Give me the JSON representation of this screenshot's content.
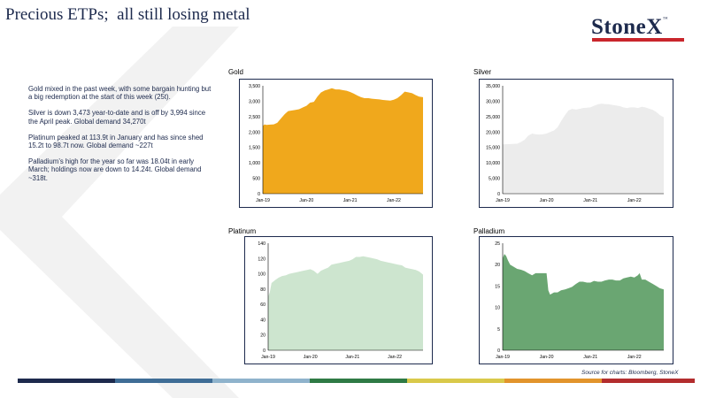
{
  "title": "Precious ETPs;  all still losing metal",
  "logo": {
    "text": "StoneX",
    "tm": "™"
  },
  "commentary": [
    "Gold mixed in the past week, with some bargain hunting but a big redemption at the start of this week (25t).",
    "Silver is down 3,473 year-to-date and is off by 3,994 since the April peak.  Global demand 34,270t",
    "Platinum peaked at 113.9t in January and has since shed 15.2t to 98.7t now.  Global demand ~227t",
    "Palladium’s  high for the year so far was 18.04t in early March; holdings now are down to 14.24t.  Global demand ~318t."
  ],
  "source": "Source for charts: Bloomberg, StoneX",
  "colors": {
    "navy": "#1d2a4d",
    "gold": "#f0a81c",
    "silver": "#ececec",
    "platinum": "#cde5cf",
    "palladium": "#6aa672",
    "logo_red": "#c9262c"
  },
  "chart_data": [
    {
      "type": "area",
      "title": "Gold",
      "color": "#f0a81c",
      "ylim": [
        0,
        3500
      ],
      "yticks": [
        "0",
        "500",
        "1,000",
        "1,500",
        "2,000",
        "2,500",
        "3,000",
        "3,500"
      ],
      "ytick_values": [
        0,
        500,
        1000,
        1500,
        2000,
        2500,
        3000,
        3500
      ],
      "xticks": [
        "Jan-19",
        "Jan-20",
        "Jan-21",
        "Jan-22"
      ],
      "xtick_values": [
        2019.0,
        2020.0,
        2021.0,
        2022.0
      ],
      "xlim": [
        2019.0,
        2022.67
      ],
      "x": [
        2019.0,
        2019.04,
        2019.08,
        2019.17,
        2019.25,
        2019.33,
        2019.42,
        2019.5,
        2019.58,
        2019.67,
        2019.75,
        2019.83,
        2019.92,
        2020.0,
        2020.08,
        2020.17,
        2020.25,
        2020.33,
        2020.42,
        2020.5,
        2020.58,
        2020.67,
        2020.75,
        2020.83,
        2020.92,
        2021.0,
        2021.08,
        2021.17,
        2021.25,
        2021.33,
        2021.42,
        2021.5,
        2021.58,
        2021.67,
        2021.75,
        2021.83,
        2021.92,
        2022.0,
        2022.08,
        2022.17,
        2022.25,
        2022.33,
        2022.42,
        2022.5,
        2022.58,
        2022.67
      ],
      "y": [
        2200,
        2250,
        2230,
        2240,
        2250,
        2300,
        2450,
        2580,
        2680,
        2700,
        2720,
        2740,
        2800,
        2850,
        2950,
        2980,
        3150,
        3280,
        3350,
        3380,
        3420,
        3380,
        3380,
        3360,
        3340,
        3300,
        3250,
        3180,
        3130,
        3100,
        3100,
        3080,
        3070,
        3060,
        3040,
        3030,
        3020,
        3050,
        3100,
        3200,
        3310,
        3290,
        3260,
        3200,
        3150,
        3130
      ]
    },
    {
      "type": "area",
      "title": "Silver",
      "color": "#ececec",
      "ylim": [
        0,
        35000
      ],
      "yticks": [
        "0",
        "5,000",
        "10,000",
        "15,000",
        "20,000",
        "25,000",
        "30,000",
        "35,000"
      ],
      "ytick_values": [
        0,
        5000,
        10000,
        15000,
        20000,
        25000,
        30000,
        35000
      ],
      "xticks": [
        "Jan-19",
        "Jan-20",
        "Jan-21",
        "Jan-22"
      ],
      "xtick_values": [
        2019.0,
        2020.0,
        2021.0,
        2022.0
      ],
      "xlim": [
        2019.0,
        2022.67
      ],
      "x": [
        2019.0,
        2019.17,
        2019.33,
        2019.42,
        2019.5,
        2019.58,
        2019.67,
        2019.75,
        2019.83,
        2019.92,
        2020.0,
        2020.08,
        2020.17,
        2020.25,
        2020.33,
        2020.42,
        2020.5,
        2020.58,
        2020.67,
        2020.75,
        2020.83,
        2020.92,
        2021.0,
        2021.08,
        2021.17,
        2021.25,
        2021.33,
        2021.42,
        2021.5,
        2021.58,
        2021.67,
        2021.75,
        2021.83,
        2021.92,
        2022.0,
        2022.08,
        2022.17,
        2022.25,
        2022.33,
        2022.42,
        2022.5,
        2022.58,
        2022.67
      ],
      "y": [
        16000,
        16100,
        16200,
        16800,
        17500,
        18800,
        19500,
        19300,
        19200,
        19300,
        19500,
        20000,
        20500,
        21500,
        23500,
        25500,
        27000,
        27500,
        27300,
        27500,
        27800,
        27900,
        28000,
        28500,
        29000,
        29200,
        29100,
        29000,
        28800,
        28600,
        28400,
        28000,
        27800,
        28000,
        28000,
        27800,
        28200,
        28000,
        27600,
        27200,
        26500,
        25500,
        24800
      ]
    },
    {
      "type": "area",
      "title": "Platinum",
      "color": "#cde5cf",
      "ylim": [
        0,
        140
      ],
      "yticks": [
        "0",
        "20",
        "40",
        "60",
        "80",
        "100",
        "120",
        "140"
      ],
      "ytick_values": [
        0,
        20,
        40,
        60,
        80,
        100,
        120,
        140
      ],
      "xticks": [
        "Jan-19",
        "Jan-20",
        "Jan-21",
        "Jan-22"
      ],
      "xtick_values": [
        2019.0,
        2020.0,
        2021.0,
        2022.0
      ],
      "xlim": [
        2019.0,
        2022.67
      ],
      "x": [
        2019.0,
        2019.04,
        2019.08,
        2019.17,
        2019.25,
        2019.33,
        2019.42,
        2019.5,
        2019.58,
        2019.67,
        2019.75,
        2019.83,
        2019.92,
        2020.0,
        2020.08,
        2020.17,
        2020.25,
        2020.33,
        2020.42,
        2020.5,
        2020.58,
        2020.67,
        2020.75,
        2020.83,
        2020.92,
        2021.0,
        2021.08,
        2021.17,
        2021.25,
        2021.33,
        2021.42,
        2021.5,
        2021.58,
        2021.67,
        2021.75,
        2021.83,
        2021.92,
        2022.0,
        2022.08,
        2022.17,
        2022.25,
        2022.33,
        2022.42,
        2022.5,
        2022.58,
        2022.67
      ],
      "y": [
        70,
        76,
        88,
        92,
        95,
        97,
        98,
        100,
        101,
        102,
        103,
        104,
        105,
        106,
        104,
        100,
        104,
        106,
        108,
        112,
        113,
        114,
        115,
        116,
        117,
        119,
        122,
        122,
        123,
        122,
        121,
        120,
        119,
        117,
        116,
        115,
        114,
        113,
        112,
        111,
        108,
        107,
        106,
        105,
        103,
        99
      ]
    },
    {
      "type": "area",
      "title": "Palladium",
      "color": "#6aa672",
      "ylim": [
        0,
        25
      ],
      "yticks": [
        "0",
        "5",
        "10",
        "15",
        "20",
        "25"
      ],
      "ytick_values": [
        0,
        5,
        10,
        15,
        20,
        25
      ],
      "xticks": [
        "Jan-19",
        "Jan-20",
        "Jan-21",
        "Jan-22"
      ],
      "xtick_values": [
        2019.0,
        2020.0,
        2021.0,
        2022.0
      ],
      "xlim": [
        2019.0,
        2022.67
      ],
      "x": [
        2019.0,
        2019.04,
        2019.08,
        2019.12,
        2019.17,
        2019.25,
        2019.33,
        2019.42,
        2019.5,
        2019.58,
        2019.67,
        2019.75,
        2019.83,
        2019.92,
        2020.0,
        2020.04,
        2020.08,
        2020.17,
        2020.25,
        2020.33,
        2020.42,
        2020.5,
        2020.58,
        2020.67,
        2020.75,
        2020.83,
        2020.92,
        2021.0,
        2021.08,
        2021.17,
        2021.25,
        2021.33,
        2021.42,
        2021.5,
        2021.58,
        2021.67,
        2021.75,
        2021.83,
        2021.92,
        2022.0,
        2022.08,
        2022.12,
        2022.17,
        2022.25,
        2022.33,
        2022.42,
        2022.5,
        2022.58,
        2022.67
      ],
      "y": [
        21.5,
        22.5,
        22.0,
        21.0,
        20.0,
        19.5,
        19.0,
        18.8,
        18.5,
        18.0,
        17.5,
        18.0,
        18.0,
        18.0,
        18.0,
        14.0,
        13.0,
        13.5,
        13.5,
        14.0,
        14.2,
        14.5,
        14.8,
        15.5,
        16.0,
        16.0,
        15.8,
        15.8,
        16.2,
        16.0,
        16.0,
        16.3,
        16.5,
        16.5,
        16.3,
        16.3,
        16.8,
        17.0,
        17.2,
        17.0,
        17.5,
        18.0,
        16.5,
        16.5,
        16.0,
        15.5,
        15.0,
        14.5,
        14.2
      ]
    }
  ]
}
